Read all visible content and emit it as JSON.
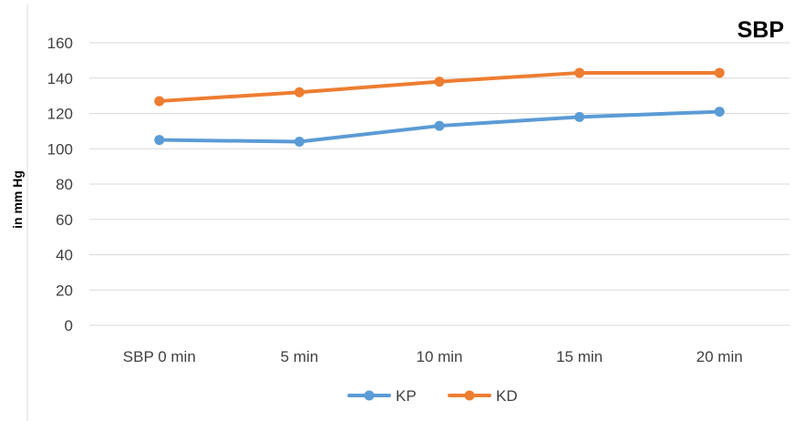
{
  "chart_data": {
    "type": "line",
    "title": "SBP",
    "xlabel": "",
    "ylabel": "in mm Hg",
    "categories": [
      "SBP 0 min",
      "5 min",
      "10 min",
      "15 min",
      "20 min"
    ],
    "ylim": [
      0,
      160
    ],
    "yticks": [
      "0",
      "20",
      "40",
      "60",
      "80",
      "100",
      "120",
      "140",
      "160"
    ],
    "grid": true,
    "legend_position": "bottom",
    "series": [
      {
        "name": "KP",
        "color": "#5B9BD5",
        "values": [
          105,
          104,
          113,
          118,
          121
        ]
      },
      {
        "name": "KD",
        "color": "#ED7D31",
        "values": [
          127,
          132,
          138,
          143,
          143
        ]
      }
    ]
  }
}
